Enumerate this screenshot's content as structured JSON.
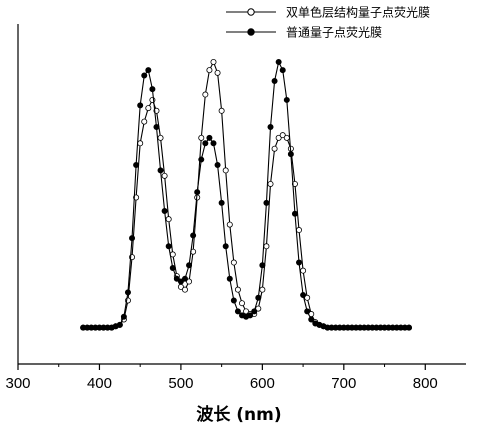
{
  "chart_data": {
    "type": "line",
    "title": "",
    "xlabel": "波长 (nm)",
    "ylabel": "",
    "xlim": [
      300,
      850
    ],
    "ylim": [
      0,
      1.05
    ],
    "x_ticks": [
      300,
      400,
      500,
      600,
      700,
      800
    ],
    "grid": false,
    "legend_position": "top-right",
    "series": [
      {
        "name": "双单色层结构量子点荧光膜",
        "marker": "open-circle",
        "x": [
          380,
          385,
          390,
          395,
          400,
          405,
          410,
          415,
          420,
          425,
          430,
          435,
          440,
          445,
          450,
          455,
          460,
          465,
          470,
          475,
          480,
          485,
          490,
          495,
          500,
          505,
          510,
          515,
          520,
          525,
          530,
          535,
          540,
          545,
          550,
          555,
          560,
          565,
          570,
          575,
          580,
          585,
          590,
          595,
          600,
          605,
          610,
          615,
          620,
          625,
          630,
          635,
          640,
          645,
          650,
          655,
          660,
          665,
          670,
          675,
          680,
          685,
          690,
          695,
          700,
          705,
          710,
          715,
          720,
          725,
          730,
          735,
          740,
          745,
          750,
          755,
          760,
          765,
          770,
          775,
          780
        ],
        "y": [
          0.02,
          0.02,
          0.02,
          0.02,
          0.02,
          0.02,
          0.02,
          0.02,
          0.025,
          0.03,
          0.05,
          0.12,
          0.28,
          0.5,
          0.7,
          0.78,
          0.83,
          0.86,
          0.82,
          0.72,
          0.58,
          0.42,
          0.29,
          0.21,
          0.17,
          0.16,
          0.19,
          0.3,
          0.5,
          0.72,
          0.88,
          0.97,
          1.0,
          0.96,
          0.82,
          0.6,
          0.4,
          0.26,
          0.16,
          0.11,
          0.08,
          0.07,
          0.07,
          0.09,
          0.16,
          0.32,
          0.55,
          0.68,
          0.72,
          0.73,
          0.72,
          0.68,
          0.55,
          0.38,
          0.23,
          0.13,
          0.07,
          0.04,
          0.03,
          0.025,
          0.02,
          0.02,
          0.02,
          0.02,
          0.02,
          0.02,
          0.02,
          0.02,
          0.02,
          0.02,
          0.02,
          0.02,
          0.02,
          0.02,
          0.02,
          0.02,
          0.02,
          0.02,
          0.02,
          0.02,
          0.02
        ]
      },
      {
        "name": "普通量子点荧光膜",
        "marker": "filled-circle",
        "x": [
          380,
          385,
          390,
          395,
          400,
          405,
          410,
          415,
          420,
          425,
          430,
          435,
          440,
          445,
          450,
          455,
          460,
          465,
          470,
          475,
          480,
          485,
          490,
          495,
          500,
          505,
          510,
          515,
          520,
          525,
          530,
          535,
          540,
          545,
          550,
          555,
          560,
          565,
          570,
          575,
          580,
          585,
          590,
          595,
          600,
          605,
          610,
          615,
          620,
          625,
          630,
          635,
          640,
          645,
          650,
          655,
          660,
          665,
          670,
          675,
          680,
          685,
          690,
          695,
          700,
          705,
          710,
          715,
          720,
          725,
          730,
          735,
          740,
          745,
          750,
          755,
          760,
          765,
          770,
          775,
          780
        ],
        "y": [
          0.02,
          0.02,
          0.02,
          0.02,
          0.02,
          0.02,
          0.02,
          0.02,
          0.025,
          0.03,
          0.06,
          0.15,
          0.35,
          0.62,
          0.84,
          0.95,
          0.97,
          0.9,
          0.76,
          0.6,
          0.45,
          0.32,
          0.24,
          0.2,
          0.19,
          0.2,
          0.25,
          0.36,
          0.52,
          0.64,
          0.7,
          0.72,
          0.7,
          0.62,
          0.48,
          0.32,
          0.2,
          0.12,
          0.08,
          0.065,
          0.06,
          0.065,
          0.08,
          0.13,
          0.25,
          0.48,
          0.76,
          0.93,
          1.0,
          0.97,
          0.86,
          0.66,
          0.44,
          0.26,
          0.14,
          0.08,
          0.05,
          0.035,
          0.03,
          0.025,
          0.02,
          0.02,
          0.02,
          0.02,
          0.02,
          0.02,
          0.02,
          0.02,
          0.02,
          0.02,
          0.02,
          0.02,
          0.02,
          0.02,
          0.02,
          0.02,
          0.02,
          0.02,
          0.02,
          0.02,
          0.02
        ]
      }
    ]
  }
}
